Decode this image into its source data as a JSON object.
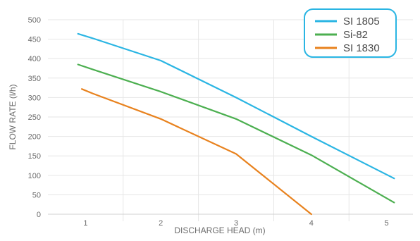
{
  "chart_data": {
    "type": "line",
    "title": "",
    "xlabel": "DISCHARGE HEAD  (m)",
    "ylabel": "FLOW RATE (l/h)",
    "xlim": [
      0.5,
      5.35
    ],
    "ylim": [
      0,
      500
    ],
    "xticks": [
      1,
      2,
      3,
      4,
      5
    ],
    "yticks": [
      0,
      50,
      100,
      150,
      200,
      250,
      300,
      350,
      400,
      450,
      500
    ],
    "grid": "horizontal and vertical",
    "legend": "top-right",
    "series": [
      {
        "name": "SI 1805",
        "color": "#2ab5e3",
        "points": [
          [
            0.9,
            464
          ],
          [
            1.1,
            452
          ],
          [
            2.0,
            395
          ],
          [
            3.0,
            300
          ],
          [
            4.0,
            200
          ],
          [
            5.1,
            92
          ]
        ]
      },
      {
        "name": "Si-82",
        "color": "#4caf50",
        "points": [
          [
            0.9,
            385
          ],
          [
            1.1,
            372
          ],
          [
            2.0,
            315
          ],
          [
            3.0,
            245
          ],
          [
            4.0,
            152
          ],
          [
            5.1,
            30
          ]
        ]
      },
      {
        "name": "SI 1830",
        "color": "#e8821e",
        "points": [
          [
            0.95,
            322
          ],
          [
            1.1,
            310
          ],
          [
            2.0,
            245
          ],
          [
            3.0,
            155
          ],
          [
            4.0,
            0
          ]
        ]
      }
    ]
  }
}
